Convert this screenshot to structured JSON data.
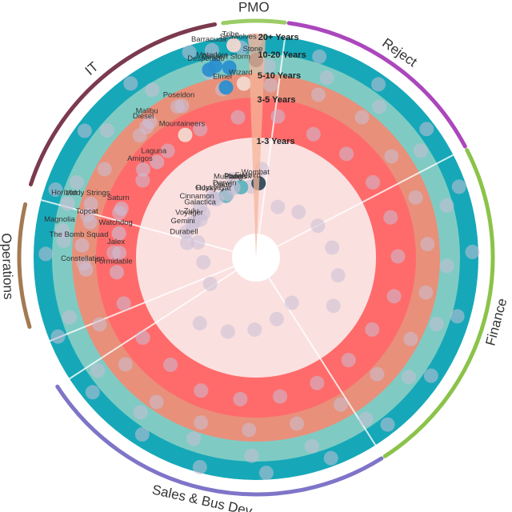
{
  "chart_data": {
    "type": "radial-bubble",
    "colors": {
      "ring_0_3": "#fbe0e0",
      "ring_3_5": "#ff6b6b",
      "ring_5_10": "#e8907a",
      "ring_10_20": "#7fcbc4",
      "ring_20_plus": "#16a8b8",
      "highlight_wedge": "#f5b59a",
      "bubble_default": "#c9c0d6",
      "bubble_blue": "#2b8fd0",
      "bubble_dark": "#2f4a5a",
      "bubble_teal": "#5fb3bd",
      "bubble_light": "#f2d8d0"
    },
    "rings": [
      {
        "label": "1-3 Years"
      },
      {
        "label": "3-5 Years"
      },
      {
        "label": "5-10 Years"
      },
      {
        "label": "10-20 Years"
      },
      {
        "label": "20+ Years"
      }
    ],
    "departments": [
      {
        "name": "PMO",
        "start_deg": -8,
        "end_deg": 7,
        "color": "#9ccc65"
      },
      {
        "name": "Reject",
        "start_deg": 8,
        "end_deg": 62,
        "color": "#ab47bc"
      },
      {
        "name": "Finance",
        "start_deg": 63,
        "end_deg": 147,
        "color": "#8bc34a"
      },
      {
        "name": "Sales & Bus Dev",
        "start_deg": 148,
        "end_deg": 237,
        "color": "#7e75c8"
      },
      {
        "name": "Operations",
        "start_deg": 253,
        "end_deg": 283,
        "color": "#a37a52"
      },
      {
        "name": "IT",
        "start_deg": 288,
        "end_deg": 350,
        "color": "#7b3a4e"
      }
    ],
    "projects": [
      {
        "name": "Seawolves",
        "ring": 4,
        "angle": -4
      },
      {
        "name": "Barracuda",
        "ring": 4,
        "angle": -12
      },
      {
        "name": "Tribe",
        "ring": 4,
        "angle": -6
      },
      {
        "name": "Matadors",
        "ring": 3,
        "angle": -12
      },
      {
        "name": "Stone",
        "ring": 3,
        "angle": 0
      },
      {
        "name": "Dessert Storm",
        "ring": 3,
        "angle": -8
      },
      {
        "name": "Desperado",
        "ring": 3,
        "angle": -14
      },
      {
        "name": "Elmer",
        "ring": 2,
        "angle": -10
      },
      {
        "name": "Wizard",
        "ring": 2,
        "angle": -4
      },
      {
        "name": "Poseidon",
        "ring": 2,
        "angle": -26
      },
      {
        "name": "Diesel",
        "ring": 2,
        "angle": -40
      },
      {
        "name": "Malibu",
        "ring": 2,
        "angle": -38
      },
      {
        "name": "Mountaineers",
        "ring": 1,
        "angle": -30
      },
      {
        "name": "Amigos",
        "ring": 1,
        "angle": -52
      },
      {
        "name": "Laguna",
        "ring": 1,
        "angle": -46
      },
      {
        "name": "Firebird",
        "ring": 0,
        "angle": -4
      },
      {
        "name": "Pluto",
        "ring": 0,
        "angle": -16
      },
      {
        "name": "Wombat",
        "ring": 0,
        "angle": 2
      },
      {
        "name": "Orion",
        "ring": 0,
        "angle": -26
      },
      {
        "name": "Husky Cat",
        "ring": 0,
        "angle": -34
      },
      {
        "name": "Phoenix",
        "ring": 0,
        "angle": -12
      },
      {
        "name": "Mustangs",
        "ring": 0,
        "angle": -18
      },
      {
        "name": "Cinnamon",
        "ring": 0,
        "angle": -48
      },
      {
        "name": "Darwin",
        "ring": 0,
        "angle": -24
      },
      {
        "name": "Zulu",
        "ring": 0,
        "angle": -60
      },
      {
        "name": "Odyssey",
        "ring": 0,
        "angle": -36
      },
      {
        "name": "Gemini",
        "ring": 0,
        "angle": -70
      },
      {
        "name": "Galactica",
        "ring": 0,
        "angle": -50
      },
      {
        "name": "Durabell",
        "ring": 0,
        "angle": -78
      },
      {
        "name": "Voyager",
        "ring": 0,
        "angle": -62
      },
      {
        "name": "Viddy Strings",
        "ring": 2,
        "angle": -72
      },
      {
        "name": "Saturn",
        "ring": 1,
        "angle": -70
      },
      {
        "name": "Topcat",
        "ring": 2,
        "angle": -78
      },
      {
        "name": "Watchdog",
        "ring": 1,
        "angle": -80
      },
      {
        "name": "Magnolia",
        "ring": 3,
        "angle": -82
      },
      {
        "name": "The Bomb Squad",
        "ring": 2,
        "angle": -86
      },
      {
        "name": "Jalex",
        "ring": 1,
        "angle": -88
      },
      {
        "name": "Constellation",
        "ring": 2,
        "angle": -94
      },
      {
        "name": "Formidable",
        "ring": 1,
        "angle": -96
      },
      {
        "name": "Horizon",
        "ring": 3,
        "angle": -74
      }
    ]
  }
}
